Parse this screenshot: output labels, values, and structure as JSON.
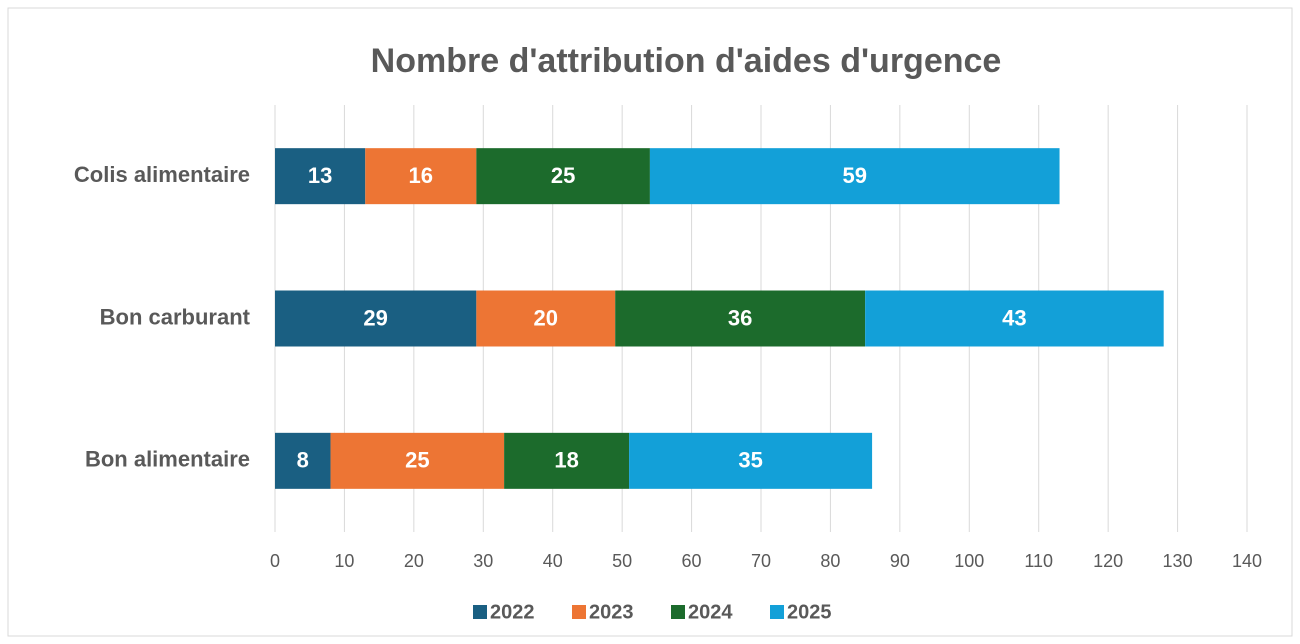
{
  "chart_data": {
    "type": "stacked_barh",
    "title": "Nombre d'attribution d'aides d'urgence",
    "categories": [
      "Colis alimentaire",
      "Bon carburant",
      "Bon alimentaire"
    ],
    "series": [
      {
        "name": "2022",
        "color": "#1a5f82",
        "values": [
          13,
          29,
          8
        ]
      },
      {
        "name": "2023",
        "color": "#ed7534",
        "values": [
          16,
          20,
          25
        ]
      },
      {
        "name": "2024",
        "color": "#1c6b2c",
        "values": [
          25,
          36,
          18
        ]
      },
      {
        "name": "2025",
        "color": "#13a0d8",
        "values": [
          59,
          43,
          35
        ]
      }
    ],
    "xlim": [
      0,
      140
    ],
    "xticks": [
      0,
      10,
      20,
      30,
      40,
      50,
      60,
      70,
      80,
      90,
      100,
      110,
      120,
      130,
      140
    ],
    "grid": true,
    "legend": "bottom"
  }
}
